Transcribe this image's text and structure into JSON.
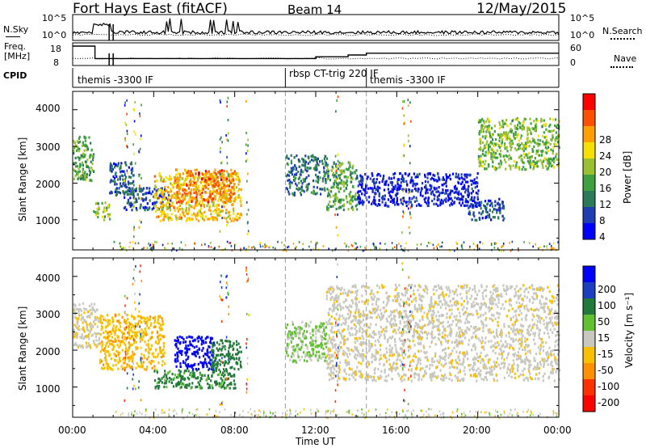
{
  "header": {
    "title": "Fort Hays East (fitACF)",
    "beam": "Beam 14",
    "date": "12/May/2015"
  },
  "summary": {
    "nsky_label": "N.Sky",
    "nsky_ticks": [
      "10^5",
      "10^0"
    ],
    "nsearch_label": "N.Search",
    "nsearch_ticks": [
      "10^5",
      "10^0"
    ],
    "freq_label_1": "Freq.",
    "freq_label_2": "[MHz]",
    "freq_ticks": [
      "18",
      "8"
    ],
    "nave_label": "Nave",
    "nave_ticks": [
      "60",
      "0"
    ],
    "cpid_label": "CPID",
    "cpid_segments": [
      {
        "name": "themis -3300 IF",
        "start_hour": 0.0
      },
      {
        "name": "rbsp CT-trig 220 IF",
        "start_hour": 10.5
      },
      {
        "name": "themis -3300 IF",
        "start_hour": 14.5
      }
    ]
  },
  "panels": {
    "power": {
      "ylabel": "Slant Range [km]",
      "colorbar_title": "Power [dB]",
      "colorbar_ticks": [
        "28",
        "24",
        "20",
        "16",
        "12",
        "8",
        "4"
      ],
      "colors": [
        "#0000ff",
        "#1f3fb0",
        "#2b7a5a",
        "#3fa040",
        "#9ac030",
        "#f5e000",
        "#ffa000",
        "#ff5000",
        "#ff0000"
      ]
    },
    "velocity": {
      "ylabel": "Slant Range [km]",
      "colorbar_title": "Velocity [m s⁻¹]",
      "colorbar_ticks": [
        "200",
        "100",
        "50",
        "15",
        "-15",
        "-50",
        "-100",
        "-200"
      ],
      "colors": [
        "#0000ff",
        "#1b3fc0",
        "#217a3a",
        "#60c030",
        "#c8c8c0",
        "#f8c000",
        "#ff9000",
        "#ff3000",
        "#ff0000"
      ]
    }
  },
  "x_axis": {
    "title": "Time UT",
    "ticks": [
      "00:00",
      "04:00",
      "08:00",
      "12:00",
      "16:00",
      "20:00",
      "00:00"
    ]
  },
  "y_axis": {
    "ticks": [
      "4000",
      "3000",
      "2000",
      "1000"
    ]
  },
  "chart_data": {
    "type": "heatmap",
    "title": "Fort Hays East (fitACF) Beam 14 12/May/2015",
    "xlabel": "Time UT",
    "ylabel": "Slant Range [km]",
    "xlim": [
      0,
      24
    ],
    "ylim": [
      180,
      4500
    ],
    "frequency_mhz": [
      {
        "from_hour": 0.0,
        "to_hour": 1.1,
        "value": 18
      },
      {
        "from_hour": 1.1,
        "to_hour": 12.0,
        "value": 11
      },
      {
        "from_hour": 12.0,
        "to_hour": 13.6,
        "value": 12
      },
      {
        "from_hour": 13.6,
        "to_hour": 14.5,
        "value": 13
      },
      {
        "from_hour": 14.5,
        "to_hour": 24.0,
        "value": 14
      }
    ],
    "power_regions": [
      {
        "t0": 0.0,
        "t1": 1.0,
        "r0": 2100,
        "r1": 3300,
        "level_db": 14
      },
      {
        "t0": 1.0,
        "t1": 1.8,
        "r0": 1000,
        "r1": 1500,
        "level_db": 16
      },
      {
        "t0": 1.8,
        "t1": 3.0,
        "r0": 1700,
        "r1": 2600,
        "level_db": 8
      },
      {
        "t0": 2.5,
        "t1": 4.8,
        "r0": 1300,
        "r1": 1900,
        "level_db": 8
      },
      {
        "t0": 4.0,
        "t1": 8.3,
        "r0": 1000,
        "r1": 2300,
        "level_db": 22
      },
      {
        "t0": 5.0,
        "t1": 8.0,
        "r0": 1500,
        "r1": 2400,
        "level_db": 26
      },
      {
        "t0": 10.5,
        "t1": 12.6,
        "r0": 1700,
        "r1": 2800,
        "level_db": 10
      },
      {
        "t0": 12.5,
        "t1": 14.0,
        "r0": 1300,
        "r1": 2600,
        "level_db": 14
      },
      {
        "t0": 14.0,
        "t1": 20.0,
        "r0": 1400,
        "r1": 2300,
        "level_db": 5
      },
      {
        "t0": 19.5,
        "t1": 21.3,
        "r0": 1000,
        "r1": 1600,
        "level_db": 8
      },
      {
        "t0": 20.0,
        "t1": 24.0,
        "r0": 2400,
        "r1": 3800,
        "level_db": 16
      }
    ],
    "velocity_regions": [
      {
        "t0": 0.0,
        "t1": 1.3,
        "r0": 2100,
        "r1": 3300,
        "velocity": -10
      },
      {
        "t0": 1.3,
        "t1": 4.5,
        "r0": 1500,
        "r1": 3000,
        "velocity": -40
      },
      {
        "t0": 4.0,
        "t1": 8.0,
        "r0": 1000,
        "r1": 1500,
        "velocity": 60
      },
      {
        "t0": 5.0,
        "t1": 7.0,
        "r0": 1500,
        "r1": 2400,
        "velocity": 220
      },
      {
        "t0": 6.8,
        "t1": 8.3,
        "r0": 1500,
        "r1": 2300,
        "velocity": 80
      },
      {
        "t0": 10.5,
        "t1": 12.5,
        "r0": 1700,
        "r1": 2800,
        "velocity": 20
      },
      {
        "t0": 12.5,
        "t1": 24.0,
        "r0": 1200,
        "r1": 3800,
        "velocity": -5
      }
    ]
  }
}
